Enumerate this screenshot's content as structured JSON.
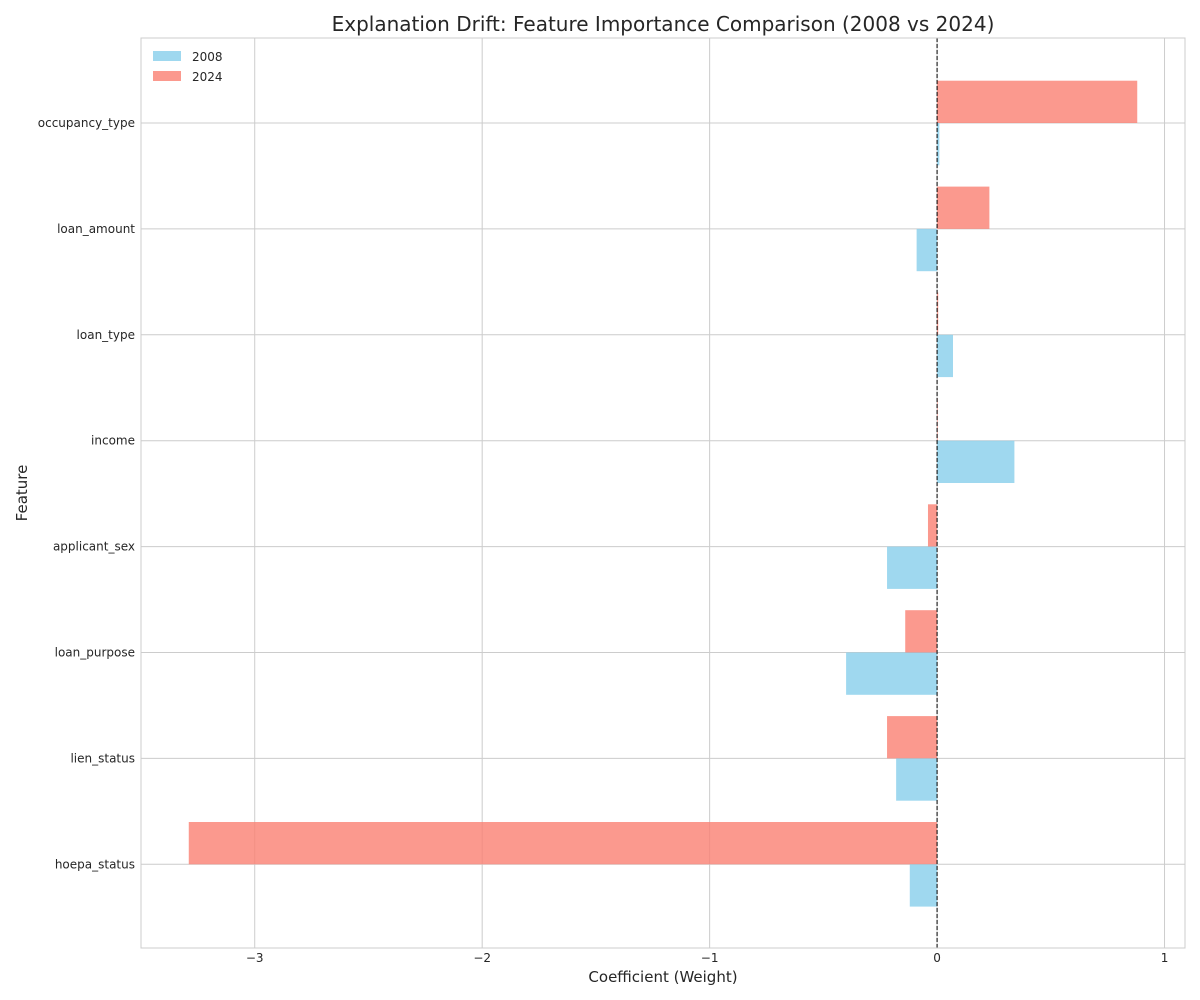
{
  "chart_data": {
    "type": "bar",
    "orientation": "horizontal",
    "title": "Explanation Drift: Feature Importance Comparison (2008 vs 2024)",
    "xlabel": "Coefficient (Weight)",
    "ylabel": "Feature",
    "categories": [
      "occupancy_type",
      "loan_amount",
      "loan_type",
      "income",
      "applicant_sex",
      "loan_purpose",
      "lien_status",
      "hoepa_status"
    ],
    "series": [
      {
        "name": "2008",
        "color": "#87ceeb",
        "values": [
          0.01,
          -0.09,
          0.07,
          0.34,
          -0.22,
          -0.4,
          -0.18,
          -0.12
        ]
      },
      {
        "name": "2024",
        "color": "#fa8072",
        "values": [
          0.88,
          0.23,
          0.005,
          0.0,
          -0.04,
          -0.14,
          -0.22,
          -3.29
        ]
      }
    ],
    "xlim": [
      -3.5,
      1.09
    ],
    "xticks": [
      -3,
      -2,
      -1,
      0,
      1
    ],
    "xtick_labels": [
      "−3",
      "−2",
      "−1",
      "0",
      "1"
    ],
    "reference_line": {
      "x": 0,
      "style": "dashed",
      "color": "#000000"
    },
    "grid": true,
    "legend_position": "top-left"
  }
}
